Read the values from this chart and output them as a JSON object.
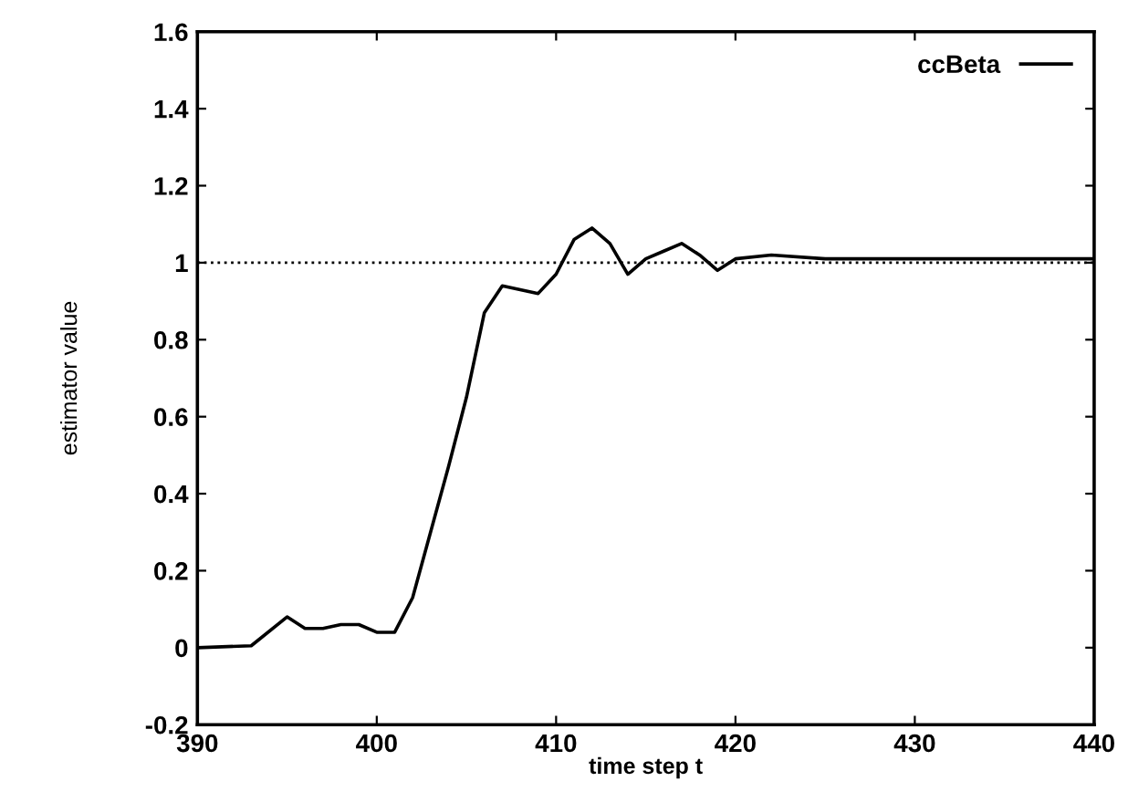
{
  "chart_data": {
    "type": "line",
    "xlabel": "time step t",
    "ylabel": "estimator value",
    "xlim": [
      390,
      440
    ],
    "xticks": [
      390,
      400,
      410,
      420,
      430,
      440
    ],
    "ylim": [
      -0.2,
      1.6
    ],
    "yticks": [
      {
        "value": -0.2,
        "label": "-0.2"
      },
      0,
      0.2,
      0.4,
      0.6,
      0.8,
      1,
      1.2,
      1.4,
      1.6
    ],
    "grid": false,
    "legend": "top right",
    "line_style": "solid",
    "marker": "none",
    "ref_lines": [
      {
        "axis": "y",
        "value": 1,
        "line_style": "dotted",
        "color": "#000000"
      }
    ],
    "series": [
      {
        "name": "ccBeta",
        "color": "#000000",
        "x": [
          390,
          393,
          395,
          396,
          397,
          398,
          399,
          400,
          401,
          402,
          403,
          404,
          405,
          406,
          407,
          408,
          409,
          410,
          411,
          412,
          413,
          414,
          415,
          416,
          417,
          418,
          419,
          420,
          422,
          425,
          430,
          435,
          440
        ],
        "values": [
          0,
          0.005,
          0.08,
          0.05,
          0.05,
          0.06,
          0.06,
          0.04,
          0.04,
          0.13,
          0.3,
          0.47,
          0.65,
          0.87,
          0.94,
          0.93,
          0.92,
          0.97,
          1.06,
          1.09,
          1.05,
          0.97,
          1.01,
          1.03,
          1.05,
          1.02,
          0.98,
          1.01,
          1.02,
          1.01,
          1.01,
          1.01,
          1.01
        ]
      }
    ]
  }
}
